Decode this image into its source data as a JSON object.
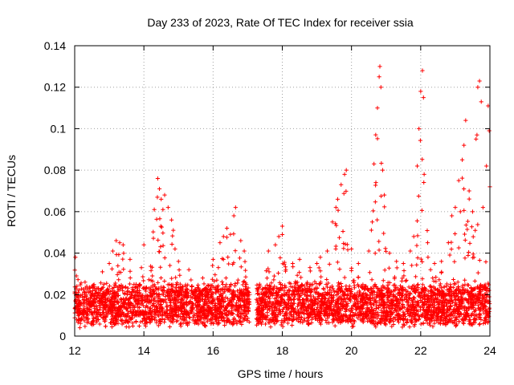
{
  "chart_data": {
    "type": "scatter",
    "title": "Day 233 of 2023, Rate Of TEC Index for receiver ssia",
    "xlabel": "GPS time / hours",
    "ylabel": "ROTI / TECUs",
    "xlim": [
      12,
      24
    ],
    "ylim": [
      0,
      0.14
    ],
    "grid": true,
    "xticks": [
      12,
      14,
      16,
      18,
      20,
      22,
      24
    ],
    "xtick_labels": [
      "12",
      "14",
      "16",
      "18",
      "20",
      "22",
      "24"
    ],
    "yticks": [
      0,
      0.02,
      0.04,
      0.06,
      0.08,
      0.1,
      0.12,
      0.14
    ],
    "ytick_labels": [
      "0",
      "0.02",
      "0.04",
      "0.06",
      "0.08",
      "0.1",
      "0.12",
      "0.14"
    ],
    "marker": "plus",
    "color": "#ff0000",
    "data_gap": [
      17.05,
      17.25
    ],
    "series": [
      {
        "name": "ROTI",
        "points": [
          [
            12.02,
            0.038
          ],
          [
            12.05,
            0.029
          ],
          [
            12.1,
            0.021
          ],
          [
            12.15,
            0.004
          ],
          [
            12.3,
            0.026
          ],
          [
            12.5,
            0.024
          ],
          [
            12.8,
            0.031
          ],
          [
            13.0,
            0.035
          ],
          [
            13.1,
            0.041
          ],
          [
            13.2,
            0.046
          ],
          [
            13.3,
            0.045
          ],
          [
            13.4,
            0.044
          ],
          [
            13.6,
            0.037
          ],
          [
            14.0,
            0.044
          ],
          [
            14.3,
            0.061
          ],
          [
            14.4,
            0.076
          ],
          [
            14.45,
            0.071
          ],
          [
            14.5,
            0.066
          ],
          [
            14.55,
            0.061
          ],
          [
            14.6,
            0.068
          ],
          [
            14.7,
            0.062
          ],
          [
            14.8,
            0.056
          ],
          [
            14.85,
            0.051
          ],
          [
            14.9,
            0.042
          ],
          [
            15.0,
            0.036
          ],
          [
            15.3,
            0.032
          ],
          [
            15.7,
            0.028
          ],
          [
            16.0,
            0.037
          ],
          [
            16.2,
            0.045
          ],
          [
            16.3,
            0.048
          ],
          [
            16.4,
            0.052
          ],
          [
            16.5,
            0.049
          ],
          [
            16.6,
            0.058
          ],
          [
            16.65,
            0.062
          ],
          [
            16.8,
            0.046
          ],
          [
            16.9,
            0.041
          ],
          [
            17.6,
            0.041
          ],
          [
            17.8,
            0.044
          ],
          [
            17.9,
            0.048
          ],
          [
            18.0,
            0.053
          ],
          [
            18.3,
            0.035
          ],
          [
            18.5,
            0.037
          ],
          [
            18.8,
            0.033
          ],
          [
            19.0,
            0.035
          ],
          [
            19.1,
            0.038
          ],
          [
            19.3,
            0.041
          ],
          [
            19.45,
            0.055
          ],
          [
            19.55,
            0.062
          ],
          [
            19.6,
            0.066
          ],
          [
            19.7,
            0.073
          ],
          [
            19.8,
            0.078
          ],
          [
            19.85,
            0.08
          ],
          [
            20.0,
            0.042
          ],
          [
            20.2,
            0.035
          ],
          [
            20.5,
            0.041
          ],
          [
            20.6,
            0.055
          ],
          [
            20.65,
            0.083
          ],
          [
            20.7,
            0.097
          ],
          [
            20.75,
            0.11
          ],
          [
            20.8,
            0.125
          ],
          [
            20.82,
            0.13
          ],
          [
            20.85,
            0.12
          ],
          [
            20.9,
            0.08
          ],
          [
            20.95,
            0.068
          ],
          [
            21.1,
            0.04
          ],
          [
            21.3,
            0.036
          ],
          [
            21.5,
            0.035
          ],
          [
            21.7,
            0.041
          ],
          [
            21.8,
            0.048
          ],
          [
            21.9,
            0.082
          ],
          [
            21.95,
            0.1
          ],
          [
            22.0,
            0.118
          ],
          [
            22.05,
            0.128
          ],
          [
            22.08,
            0.115
          ],
          [
            22.1,
            0.078
          ],
          [
            22.2,
            0.045
          ],
          [
            22.4,
            0.035
          ],
          [
            22.6,
            0.036
          ],
          [
            22.8,
            0.045
          ],
          [
            22.9,
            0.058
          ],
          [
            23.0,
            0.062
          ],
          [
            23.1,
            0.075
          ],
          [
            23.2,
            0.085
          ],
          [
            23.25,
            0.092
          ],
          [
            23.3,
            0.104
          ],
          [
            23.4,
            0.07
          ],
          [
            23.5,
            0.06
          ],
          [
            23.6,
            0.095
          ],
          [
            23.65,
            0.12
          ],
          [
            23.7,
            0.123
          ],
          [
            23.75,
            0.113
          ],
          [
            23.8,
            0.062
          ],
          [
            23.9,
            0.082
          ],
          [
            23.95,
            0.111
          ],
          [
            23.98,
            0.099
          ],
          [
            24.0,
            0.072
          ]
        ]
      }
    ]
  }
}
